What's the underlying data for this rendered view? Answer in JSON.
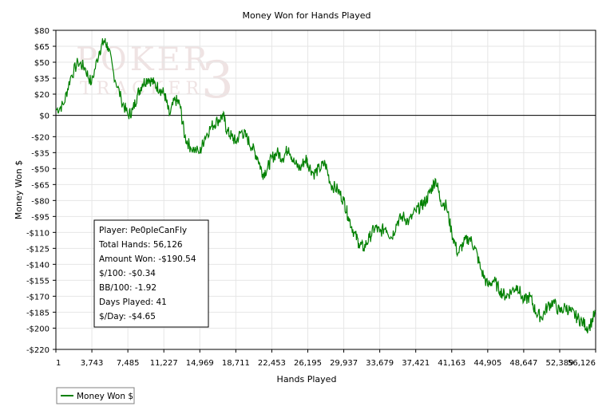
{
  "chart_data": {
    "type": "line",
    "title": "Money Won for Hands Played",
    "xlabel": "Hands Played",
    "ylabel": "Money Won $",
    "xlim": [
      1,
      56126
    ],
    "ylim": [
      -220,
      80
    ],
    "grid": true,
    "legend_position": "bottom-left",
    "x_ticks": [
      1,
      3743,
      7485,
      11227,
      14969,
      18711,
      22453,
      26195,
      29937,
      33679,
      37421,
      41163,
      44905,
      48647,
      52389,
      56126
    ],
    "x_tick_labels": [
      "1",
      "3,743",
      "7,485",
      "11,227",
      "14,969",
      "18,711",
      "22,453",
      "26,195",
      "29,937",
      "33,679",
      "37,421",
      "41,163",
      "44,905",
      "48,647",
      "52,389",
      "56,126"
    ],
    "y_ticks": [
      80,
      65,
      50,
      35,
      20,
      0,
      -20,
      -35,
      -50,
      -65,
      -80,
      -95,
      -110,
      -125,
      -140,
      -155,
      -170,
      -185,
      -200,
      -220
    ],
    "y_tick_labels": [
      "$80",
      "$65",
      "$50",
      "$35",
      "$20",
      "$0",
      "-$20",
      "-$35",
      "-$50",
      "-$65",
      "-$80",
      "-$95",
      "-$110",
      "-$125",
      "-$140",
      "-$155",
      "-$170",
      "-$185",
      "-$200",
      "-$220"
    ],
    "series": [
      {
        "name": "Money Won $",
        "color": "#008000",
        "x": [
          1,
          800,
          1500,
          2300,
          3000,
          3700,
          4500,
          5000,
          5400,
          6000,
          6800,
          7500,
          8000,
          8500,
          9000,
          9600,
          10200,
          10800,
          11300,
          11800,
          12400,
          12900,
          13400,
          14000,
          14969,
          15500,
          16200,
          16800,
          17400,
          17800,
          18300,
          18711,
          19300,
          19800,
          20400,
          21000,
          21500,
          22000,
          22453,
          23000,
          23600,
          24200,
          24800,
          25400,
          26000,
          26195,
          26800,
          27400,
          28000,
          28600,
          29300,
          29937,
          30400,
          31000,
          31500,
          32000,
          32600,
          33200,
          33679,
          34300,
          34900,
          35500,
          36100,
          36700,
          37421,
          38000,
          38500,
          39000,
          39500,
          40000,
          40600,
          41163,
          41800,
          42400,
          43000,
          43600,
          44200,
          44905,
          45500,
          46200,
          46800,
          47400,
          48000,
          48647,
          49300,
          49900,
          50500,
          51100,
          51700,
          52389,
          53000,
          53600,
          54200,
          54800,
          55400,
          56126
        ],
        "values": [
          5,
          10,
          35,
          50,
          45,
          30,
          60,
          70,
          65,
          40,
          15,
          0,
          5,
          20,
          30,
          35,
          30,
          25,
          20,
          0,
          15,
          10,
          -20,
          -30,
          -35,
          -20,
          -10,
          -5,
          0,
          -15,
          -20,
          -25,
          -15,
          -20,
          -30,
          -40,
          -55,
          -50,
          -40,
          -35,
          -40,
          -30,
          -45,
          -50,
          -40,
          -45,
          -55,
          -50,
          -45,
          -65,
          -70,
          -80,
          -95,
          -110,
          -120,
          -125,
          -115,
          -105,
          -110,
          -105,
          -115,
          -100,
          -95,
          -100,
          -90,
          -85,
          -80,
          -70,
          -60,
          -80,
          -85,
          -110,
          -130,
          -120,
          -115,
          -125,
          -145,
          -160,
          -155,
          -165,
          -170,
          -165,
          -160,
          -175,
          -170,
          -185,
          -190,
          -180,
          -175,
          -185,
          -180,
          -185,
          -190,
          -195,
          -200,
          -185
        ]
      }
    ]
  },
  "info_box": {
    "player": "Player: Pe0pleCanFly",
    "total_hands": "Total Hands: 56,126",
    "amount_won": "Amount Won: -$190.54",
    "per_100": "$/100: -$0.34",
    "bb_per_100": "BB/100: -1.92",
    "days_played": "Days Played: 41",
    "per_day": "$/Day: -$4.65"
  },
  "watermark": {
    "line1": "POKER",
    "line2": "TRACKER",
    "mark": "3"
  },
  "legend": {
    "label": "Money Won $"
  }
}
